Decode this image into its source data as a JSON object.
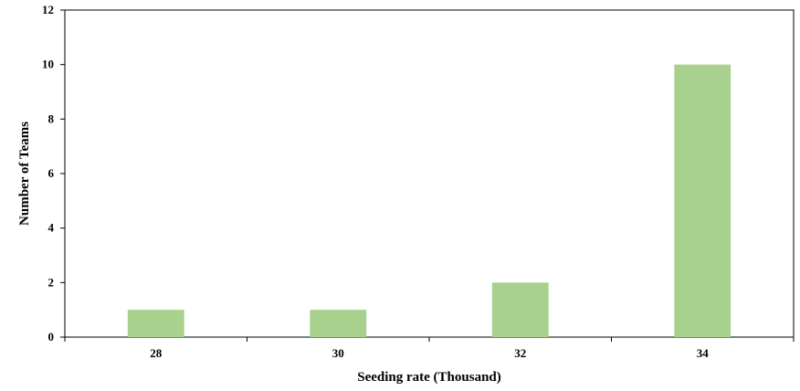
{
  "chart_data": {
    "type": "bar",
    "categories": [
      "28",
      "30",
      "32",
      "34"
    ],
    "values": [
      1,
      1,
      2,
      10
    ],
    "title": "",
    "xlabel": "Seeding rate (Thousand)",
    "ylabel": "Number of Teams",
    "ylim": [
      0,
      12
    ],
    "yticks": [
      0,
      2,
      4,
      6,
      8,
      10,
      12
    ],
    "bar_color": "#a9d18e",
    "grid": false,
    "legend": "none"
  }
}
